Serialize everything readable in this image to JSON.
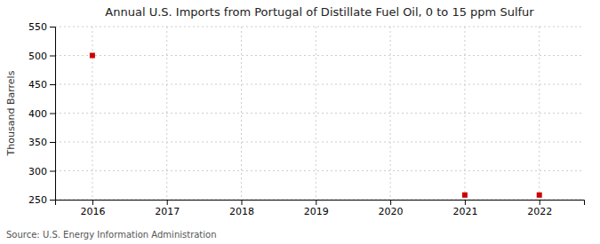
{
  "chart_data": {
    "type": "scatter",
    "title": "Annual U.S. Imports from Portugal of Distillate Fuel Oil, 0 to 15 ppm Sulfur",
    "ylabel": "Thousand Barrels",
    "annotations": [
      "Source: U.S. Energy Information Administration"
    ],
    "x": [
      2016,
      2021,
      2022
    ],
    "values": [
      500,
      258,
      258
    ],
    "color": "#cc0000",
    "marker": "square",
    "xlim": [
      2015.5,
      2022.6
    ],
    "ylim": [
      250,
      550
    ],
    "xticks": [
      2016,
      2017,
      2018,
      2019,
      2020,
      2021,
      2022
    ],
    "yticks": [
      250,
      300,
      350,
      400,
      450,
      500,
      550
    ],
    "grid": true
  }
}
